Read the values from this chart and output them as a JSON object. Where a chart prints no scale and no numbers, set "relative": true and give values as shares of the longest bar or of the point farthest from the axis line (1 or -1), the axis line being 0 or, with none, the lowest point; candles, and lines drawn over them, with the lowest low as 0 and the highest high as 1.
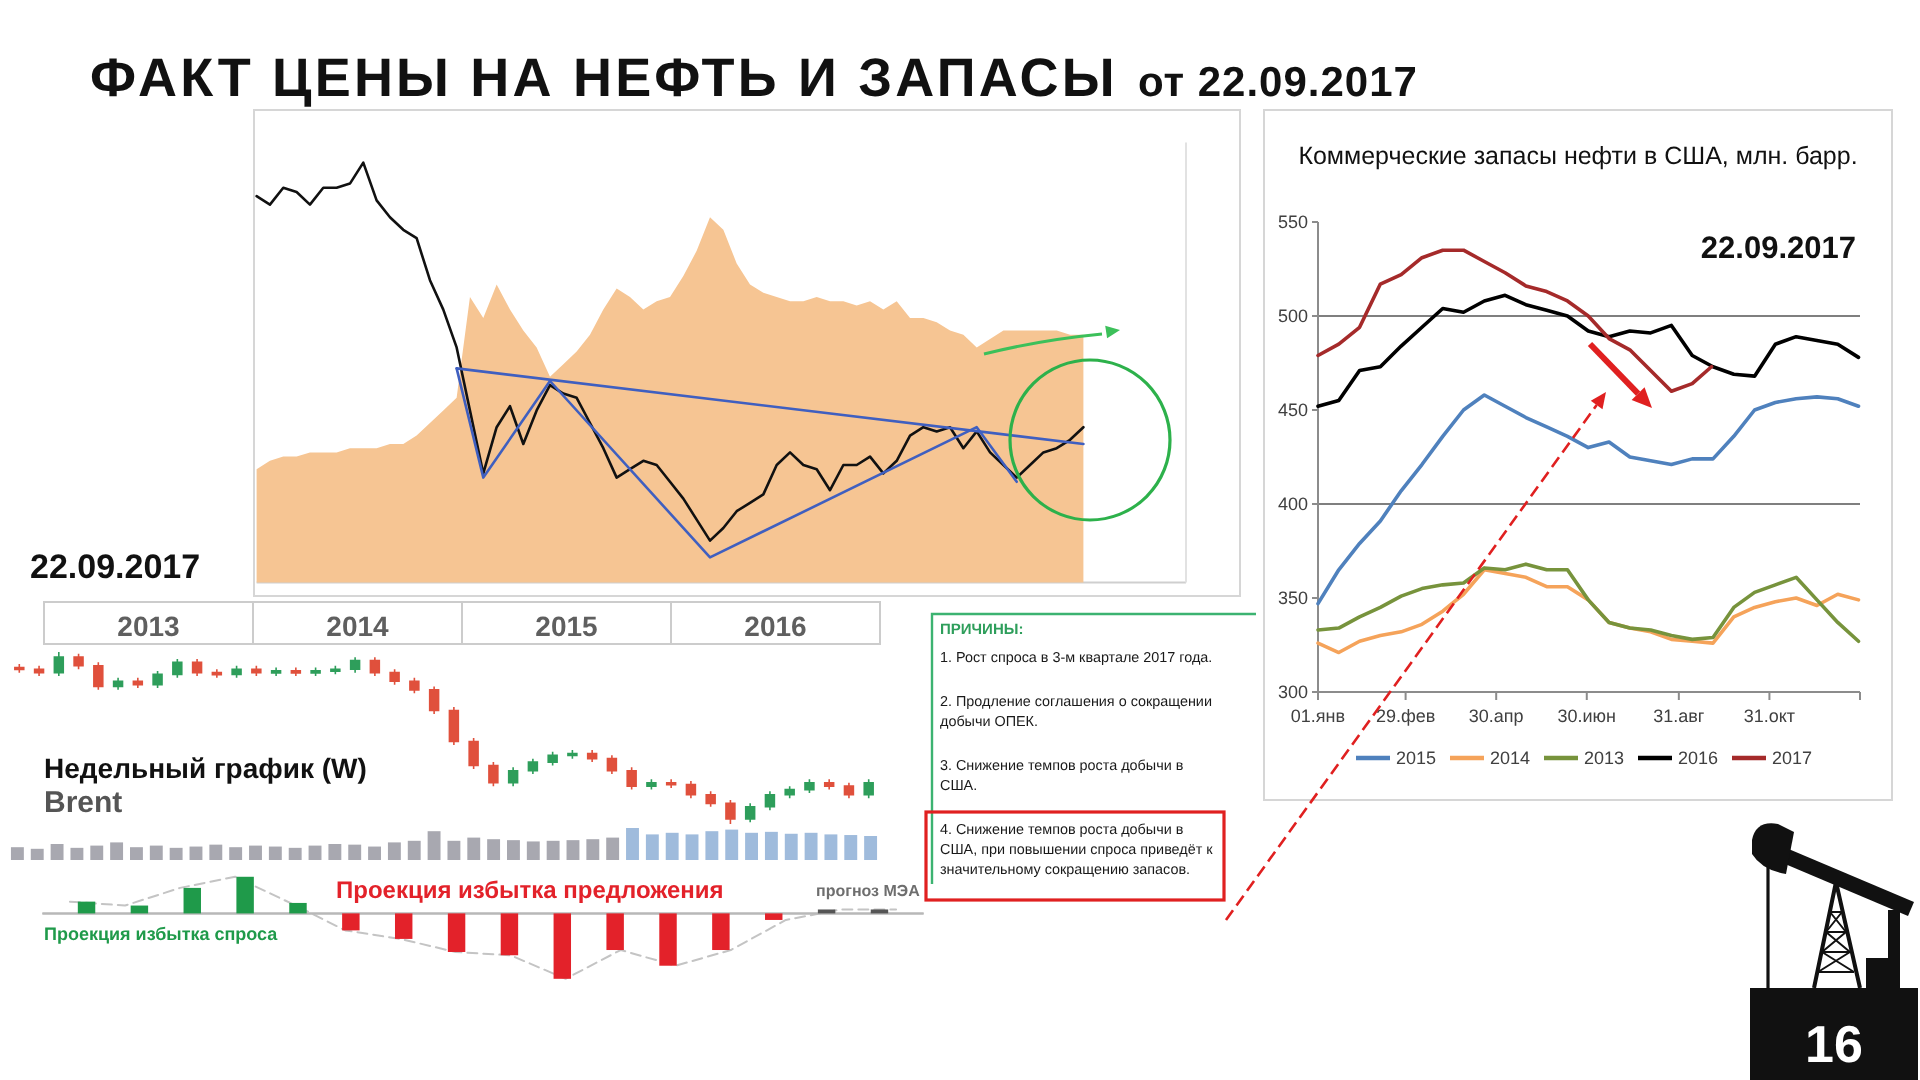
{
  "chart_data": [
    {
      "type": "other",
      "title": "ФАКТ ЦЕНЫ НА НЕФТЬ И ЗАПАСЫ",
      "subtitle": "от 22.09.2017"
    },
    {
      "type": "line",
      "relative": true,
      "categories": [
        null,
        null,
        null,
        null,
        null,
        null,
        null,
        null,
        null,
        null,
        null,
        null,
        null,
        null,
        null,
        null,
        null,
        null,
        null,
        null,
        null,
        null,
        null,
        null,
        null,
        null,
        null,
        null,
        null,
        null,
        null,
        null,
        null,
        null,
        null,
        null,
        null,
        null,
        null,
        null,
        null,
        null,
        null,
        null,
        null,
        null,
        null,
        null,
        null,
        null,
        null,
        null,
        null,
        null,
        null,
        null,
        null,
        null,
        null,
        null,
        null,
        null,
        null
      ],
      "series": [
        {
          "type": "area",
          "color": "#f6c593",
          "values": [
            0.27,
            0.29,
            0.3,
            0.3,
            0.31,
            0.31,
            0.31,
            0.32,
            0.32,
            0.32,
            0.33,
            0.33,
            0.35,
            0.38,
            0.41,
            0.44,
            0.68,
            0.63,
            0.71,
            0.65,
            0.6,
            0.56,
            0.49,
            0.52,
            0.55,
            0.59,
            0.65,
            0.7,
            0.68,
            0.65,
            0.67,
            0.68,
            0.73,
            0.79,
            0.87,
            0.84,
            0.76,
            0.71,
            0.69,
            0.68,
            0.67,
            0.67,
            0.68,
            0.67,
            0.67,
            0.66,
            0.67,
            0.65,
            0.67,
            0.63,
            0.63,
            0.62,
            0.6,
            0.59,
            0.56,
            0.58,
            0.6,
            0.6,
            0.6,
            0.6,
            0.6,
            0.59,
            0.59
          ]
        },
        {
          "type": "line",
          "color": "#111111",
          "values": [
            0.92,
            0.9,
            0.94,
            0.93,
            0.9,
            0.94,
            0.94,
            0.95,
            1,
            0.91,
            0.87,
            0.84,
            0.82,
            0.72,
            0.65,
            0.56,
            0.41,
            0.26,
            0.37,
            0.42,
            0.33,
            0.41,
            0.47,
            0.45,
            0.44,
            0.38,
            0.32,
            0.25,
            0.27,
            0.29,
            0.28,
            0.24,
            0.2,
            0.15,
            0.1,
            0.13,
            0.17,
            0.19,
            0.21,
            0.28,
            0.31,
            0.28,
            0.27,
            0.22,
            0.28,
            0.28,
            0.3,
            0.26,
            0.29,
            0.35,
            0.37,
            0.36,
            0.37,
            0.32,
            0.36,
            0.31,
            0.28,
            0.25,
            0.28,
            0.31,
            0.32,
            0.34,
            0.37
          ]
        },
        {
          "type": "line",
          "color": "#3f5fc0",
          "values": [
            null,
            null,
            null,
            null,
            null,
            null,
            null,
            null,
            null,
            null,
            null,
            null,
            null,
            null,
            null,
            0.51,
            null,
            null,
            null,
            null,
            null,
            null,
            null,
            null,
            null,
            null,
            null,
            null,
            null,
            null,
            null,
            null,
            null,
            null,
            null,
            null,
            null,
            null,
            null,
            null,
            null,
            null,
            null,
            null,
            null,
            null,
            null,
            null,
            null,
            null,
            null,
            null,
            null,
            null,
            null,
            null,
            null,
            null,
            null,
            null,
            null,
            null,
            0.33
          ]
        },
        {
          "type": "line",
          "color": "#3f5fc0",
          "values": [
            null,
            null,
            null,
            null,
            null,
            null,
            null,
            null,
            null,
            null,
            null,
            null,
            null,
            null,
            null,
            0.51,
            null,
            0.25,
            null,
            null,
            null,
            null,
            0.48,
            null,
            null,
            null,
            null,
            null,
            null,
            null,
            null,
            null,
            null,
            null,
            0.06,
            null,
            null,
            null,
            null,
            null,
            null,
            null,
            null,
            null,
            null,
            null,
            null,
            null,
            null,
            null,
            null,
            null,
            null,
            null,
            0.37,
            null,
            null,
            0.24,
            null,
            null,
            null,
            null,
            null
          ]
        }
      ],
      "annotations": [
        "22.09.2017"
      ]
    },
    {
      "type": "line",
      "title": "Коммерческие запасы нефти в США, млн. барр.",
      "x": [
        "--01-01",
        "--01-15",
        "--01-29",
        "--02-12",
        "--02-26",
        "--03-11",
        "--03-25",
        "--04-08",
        "--04-22",
        "--05-06",
        "--05-20",
        "--06-03",
        "--06-17",
        "--07-01",
        "--07-15",
        "--07-29",
        "--08-12",
        "--08-26",
        "--09-09",
        "--09-23",
        "--10-07",
        "--10-21",
        "--11-04",
        "--11-18",
        "--12-02",
        "--12-16",
        "--12-30"
      ],
      "xlim": [
        "--01-01",
        "--12-31"
      ],
      "xticks": [
        {
          "value": "--01-01",
          "label": "01.янв"
        },
        {
          "value": "--02-29",
          "label": "29.фев"
        },
        {
          "value": "--04-30",
          "label": "30.апр"
        },
        {
          "value": "--06-30",
          "label": "30.июн"
        },
        {
          "value": "--08-31",
          "label": "31.авг"
        },
        {
          "value": "--10-31",
          "label": "31.окт"
        }
      ],
      "ylim": [
        300,
        550
      ],
      "yticks": [
        300,
        350,
        400,
        450,
        500,
        550
      ],
      "ref_lines": [
        {
          "axis": "y",
          "value": 400,
          "color": "#7f7f7f"
        },
        {
          "axis": "y",
          "value": 500,
          "color": "#7f7f7f"
        }
      ],
      "legend": "bottom",
      "series": [
        {
          "name": "2015",
          "color": "#4f81bd",
          "values": [
            347,
            365,
            379,
            391,
            407,
            421,
            436,
            450,
            458,
            452,
            446,
            441,
            436,
            430,
            433,
            425,
            423,
            421,
            424,
            424,
            436,
            450,
            454,
            456,
            457,
            456,
            452
          ]
        },
        {
          "name": "2014",
          "color": "#f5a35a",
          "values": [
            326,
            321,
            327,
            330,
            332,
            336,
            343,
            352,
            365,
            363,
            361,
            356,
            356,
            349,
            337,
            334,
            332,
            328,
            327,
            326,
            340,
            345,
            348,
            350,
            346,
            352,
            349
          ]
        },
        {
          "name": "2013",
          "color": "#77933c",
          "values": [
            333,
            334,
            340,
            345,
            351,
            355,
            357,
            358,
            366,
            365,
            368,
            365,
            365,
            349,
            337,
            334,
            333,
            330,
            328,
            329,
            345,
            353,
            357,
            361,
            349,
            337,
            327
          ]
        },
        {
          "name": "2016",
          "color": "#000000",
          "values": [
            452,
            455,
            471,
            473,
            484,
            494,
            504,
            502,
            508,
            511,
            506,
            503,
            500,
            492,
            489,
            492,
            491,
            495,
            479,
            473,
            469,
            468,
            485,
            489,
            487,
            485,
            478
          ]
        },
        {
          "name": "2017",
          "color": "#a52a2a",
          "x": [
            "--01-01",
            "--01-15",
            "--01-29",
            "--02-12",
            "--02-26",
            "--03-11",
            "--03-25",
            "--04-08",
            "--04-22",
            "--05-06",
            "--05-20",
            "--06-03",
            "--06-17",
            "--07-01",
            "--07-15",
            "--07-29",
            "--08-12",
            "--08-26",
            "--09-09",
            "--09-22"
          ],
          "values": [
            479,
            485,
            494,
            517,
            522,
            531,
            535,
            535,
            529,
            523,
            516,
            513,
            508,
            500,
            488,
            482,
            471,
            460,
            464,
            473
          ]
        }
      ],
      "annotations": [
        "22.09.2017"
      ]
    },
    {
      "type": "candlestick",
      "title": "Недельный график (W)",
      "subtitle": "Brent",
      "relative": true,
      "categories": [
        null,
        null,
        null,
        null,
        null,
        null,
        null,
        null,
        null,
        null,
        null,
        null,
        null,
        null,
        null,
        null,
        null,
        null,
        null,
        null,
        null,
        null,
        null,
        null,
        null,
        null,
        null,
        null,
        null,
        null,
        null,
        null,
        null,
        null,
        null,
        null,
        null,
        null,
        null,
        null,
        null,
        null,
        null,
        null
      ],
      "ohlc": [
        [
          0.91,
          0.93,
          0.88,
          0.9
        ],
        [
          0.9,
          0.92,
          0.86,
          0.88
        ],
        [
          0.88,
          1,
          0.86,
          0.97
        ],
        [
          0.97,
          0.99,
          0.9,
          0.92
        ],
        [
          0.92,
          0.94,
          0.78,
          0.8
        ],
        [
          0.8,
          0.85,
          0.78,
          0.83
        ],
        [
          0.83,
          0.85,
          0.79,
          0.81
        ],
        [
          0.81,
          0.89,
          0.79,
          0.87
        ],
        [
          0.87,
          0.96,
          0.85,
          0.94
        ],
        [
          0.94,
          0.96,
          0.86,
          0.88
        ],
        [
          0.88,
          0.9,
          0.85,
          0.87
        ],
        [
          0.87,
          0.92,
          0.85,
          0.9
        ],
        [
          0.9,
          0.92,
          0.86,
          0.88
        ],
        [
          0.88,
          0.91,
          0.86,
          0.89
        ],
        [
          0.89,
          0.91,
          0.86,
          0.88
        ],
        [
          0.88,
          0.91,
          0.86,
          0.89
        ],
        [
          0.89,
          0.92,
          0.87,
          0.9
        ],
        [
          0.9,
          0.97,
          0.88,
          0.95
        ],
        [
          0.95,
          0.97,
          0.86,
          0.88
        ],
        [
          0.88,
          0.9,
          0.81,
          0.83
        ],
        [
          0.83,
          0.85,
          0.76,
          0.78
        ],
        [
          0.78,
          0.8,
          0.64,
          0.66
        ],
        [
          0.66,
          0.68,
          0.46,
          0.48
        ],
        [
          0.48,
          0.5,
          0.32,
          0.34
        ],
        [
          0.34,
          0.36,
          0.22,
          0.24
        ],
        [
          0.24,
          0.33,
          0.22,
          0.31
        ],
        [
          0.31,
          0.38,
          0.29,
          0.36
        ],
        [
          0.36,
          0.42,
          0.34,
          0.4
        ],
        [
          0.4,
          0.43,
          0.38,
          0.41
        ],
        [
          0.41,
          0.43,
          0.36,
          0.38
        ],
        [
          0.38,
          0.4,
          0.29,
          0.31
        ],
        [
          0.31,
          0.33,
          0.2,
          0.22
        ],
        [
          0.22,
          0.26,
          0.2,
          0.24
        ],
        [
          0.24,
          0.26,
          0.21,
          0.23
        ],
        [
          0.23,
          0.25,
          0.15,
          0.17
        ],
        [
          0.17,
          0.19,
          0.1,
          0.12
        ],
        [
          0.12,
          0.14,
          0,
          0.03
        ],
        [
          0.03,
          0.12,
          0.01,
          0.1
        ],
        [
          0.1,
          0.19,
          0.08,
          0.17
        ],
        [
          0.17,
          0.22,
          0.15,
          0.2
        ],
        [
          0.2,
          0.26,
          0.18,
          0.24
        ],
        [
          0.24,
          0.26,
          0.2,
          0.22
        ],
        [
          0.22,
          0.24,
          0.15,
          0.17
        ],
        [
          0.17,
          0.26,
          0.15,
          0.24
        ]
      ],
      "colors": [
        "#e0503c",
        "#e0503c",
        "#2e9e5b",
        "#e0503c",
        "#e0503c",
        "#2e9e5b",
        "#e0503c",
        "#2e9e5b",
        "#2e9e5b",
        "#e0503c",
        "#e0503c",
        "#2e9e5b",
        "#e0503c",
        "#2e9e5b",
        "#e0503c",
        "#2e9e5b",
        "#2e9e5b",
        "#2e9e5b",
        "#e0503c",
        "#e0503c",
        "#e0503c",
        "#e0503c",
        "#e0503c",
        "#e0503c",
        "#e0503c",
        "#2e9e5b",
        "#2e9e5b",
        "#2e9e5b",
        "#2e9e5b",
        "#e0503c",
        "#e0503c",
        "#e0503c",
        "#2e9e5b",
        "#e0503c",
        "#e0503c",
        "#e0503c",
        "#e0503c",
        "#2e9e5b",
        "#2e9e5b",
        "#2e9e5b",
        "#2e9e5b",
        "#e0503c",
        "#e0503c",
        "#2e9e5b"
      ],
      "annotations": [
        "2013",
        "2014",
        "2015",
        "2016"
      ]
    },
    {
      "type": "bar",
      "relative": true,
      "categories": [
        null,
        null,
        null,
        null,
        null,
        null,
        null,
        null,
        null,
        null,
        null,
        null,
        null,
        null,
        null,
        null,
        null,
        null,
        null,
        null,
        null,
        null,
        null,
        null,
        null,
        null,
        null,
        null,
        null,
        null,
        null,
        null,
        null,
        null,
        null,
        null,
        null,
        null,
        null,
        null,
        null,
        null,
        null,
        null
      ],
      "values": [
        0.4,
        0.35,
        0.5,
        0.38,
        0.45,
        0.55,
        0.4,
        0.45,
        0.38,
        0.42,
        0.48,
        0.4,
        0.45,
        0.42,
        0.38,
        0.45,
        0.5,
        0.48,
        0.42,
        0.55,
        0.6,
        0.9,
        0.6,
        0.7,
        0.65,
        0.62,
        0.58,
        0.6,
        0.62,
        0.65,
        0.7,
        1,
        0.8,
        0.85,
        0.8,
        0.9,
        0.95,
        0.85,
        0.88,
        0.82,
        0.85,
        0.8,
        0.78,
        0.75
      ],
      "colors": [
        "#a8a8b0",
        "#a8a8b0",
        "#a8a8b0",
        "#a8a8b0",
        "#a8a8b0",
        "#a8a8b0",
        "#a8a8b0",
        "#a8a8b0",
        "#a8a8b0",
        "#a8a8b0",
        "#a8a8b0",
        "#a8a8b0",
        "#a8a8b0",
        "#a8a8b0",
        "#a8a8b0",
        "#a8a8b0",
        "#a8a8b0",
        "#a8a8b0",
        "#a8a8b0",
        "#a8a8b0",
        "#a8a8b0",
        "#a8a8b0",
        "#a8a8b0",
        "#a8a8b0",
        "#a8a8b0",
        "#a8a8b0",
        "#a8a8b0",
        "#a8a8b0",
        "#a8a8b0",
        "#a8a8b0",
        "#a8a8b0",
        "#9fbbdc",
        "#9fbbdc",
        "#9fbbdc",
        "#9fbbdc",
        "#9fbbdc",
        "#9fbbdc",
        "#9fbbdc",
        "#9fbbdc",
        "#9fbbdc",
        "#9fbbdc",
        "#9fbbdc",
        "#9fbbdc",
        "#9fbbdc"
      ]
    },
    {
      "type": "other",
      "title": "ПРИЧИНЫ:",
      "annotations": [
        "1. Рост спроса в 3-м квартале 2017 года.",
        "2. Продление соглашения о сокращении добычи ОПЕК.",
        "3. Снижение темпов роста добычи в США.",
        "4. Снижение темпов роста добычи в США, при повышении спроса приведёт к значительному сокращению запасов."
      ]
    },
    {
      "type": "line",
      "relative": true,
      "line_style": "dashed",
      "color": "#c4c4c4",
      "categories": [
        null,
        null,
        null,
        null,
        null,
        null,
        null,
        null,
        null,
        null,
        null,
        null,
        null,
        null,
        null,
        null
      ],
      "values": [
        0.18,
        0.12,
        0.39,
        0.56,
        0.16,
        -0.26,
        -0.39,
        -0.59,
        -0.64,
        -1,
        -0.56,
        -0.8,
        -0.56,
        -0.1,
        0.06,
        0.06
      ]
    },
    {
      "type": "bar",
      "relative": true,
      "categories": [
        null,
        null,
        null,
        null,
        null,
        null,
        null,
        null,
        null,
        null,
        null,
        null,
        null,
        null,
        null,
        null
      ],
      "values": [
        0.18,
        0.12,
        0.39,
        0.56,
        0.16,
        -0.26,
        -0.39,
        -0.59,
        -0.64,
        -1,
        -0.56,
        -0.8,
        -0.56,
        -0.1,
        0.06,
        0.06
      ],
      "colors": [
        "#1f9a4a",
        "#1f9a4a",
        "#1f9a4a",
        "#1f9a4a",
        "#1f9a4a",
        "#e3222a",
        "#e3222a",
        "#e3222a",
        "#e3222a",
        "#e3222a",
        "#e3222a",
        "#e3222a",
        "#e3222a",
        "#e3222a",
        "#555555",
        "#555555"
      ]
    },
    {
      "type": "other",
      "annotations": [
        "Проекция избытка спроса",
        "Проекция избытка предложения",
        "прогноз МЭА"
      ]
    },
    {
      "type": "other",
      "annotations": [
        "16"
      ]
    }
  ]
}
